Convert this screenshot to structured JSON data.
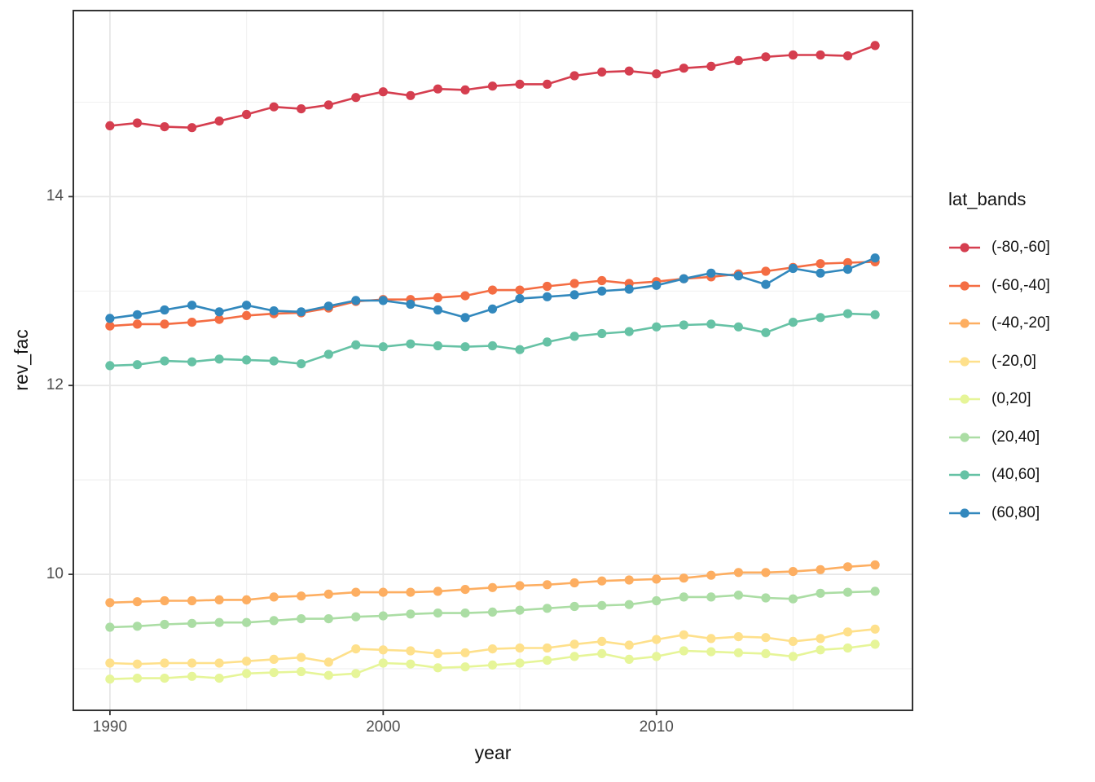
{
  "figure": {
    "background": "#ffffff",
    "panel_border_color": "#333333",
    "grid_major_color": "#e7e7e7",
    "grid_minor_color": "#f1f1f1",
    "tick_mark_color": "#333333",
    "axis_text_color": "#4d4d4d",
    "axis_title_color": "#141414"
  },
  "chart_data": {
    "type": "line",
    "title": "",
    "xlabel": "year",
    "ylabel": "rev_fac",
    "legend_title": "lat_bands",
    "legend_position": "right",
    "grid": true,
    "marker": "circle",
    "x": [
      1990,
      1991,
      1992,
      1993,
      1994,
      1995,
      1996,
      1997,
      1998,
      1999,
      2000,
      2001,
      2002,
      2003,
      2004,
      2005,
      2006,
      2007,
      2008,
      2009,
      2010,
      2011,
      2012,
      2013,
      2014,
      2015,
      2016,
      2017,
      2018
    ],
    "x_ticks": [
      1990,
      2000,
      2010
    ],
    "x_tick_labels": [
      "1990",
      "2000",
      "2010"
    ],
    "x_minor_ticks": [
      1995,
      2005,
      2015
    ],
    "y_ticks": [
      14,
      12,
      10
    ],
    "y_tick_labels": [
      "14",
      "12",
      "10"
    ],
    "y_minor_ticks": [
      9,
      11,
      13,
      15
    ],
    "xlim": [
      1988.66,
      2019.37
    ],
    "ylim": [
      8.56,
      15.97
    ],
    "series": [
      {
        "name": "(-80,-60]",
        "color": "#d53e4f",
        "values": [
          14.75,
          14.78,
          14.74,
          14.73,
          14.8,
          14.87,
          14.95,
          14.93,
          14.97,
          15.05,
          15.11,
          15.07,
          15.14,
          15.13,
          15.17,
          15.19,
          15.19,
          15.28,
          15.32,
          15.33,
          15.3,
          15.36,
          15.38,
          15.44,
          15.48,
          15.5,
          15.5,
          15.49,
          15.6
        ]
      },
      {
        "name": "(-60,-40]",
        "color": "#f46d43",
        "values": [
          12.63,
          12.65,
          12.65,
          12.67,
          12.7,
          12.74,
          12.76,
          12.77,
          12.82,
          12.89,
          12.91,
          12.91,
          12.93,
          12.95,
          13.01,
          13.01,
          13.05,
          13.08,
          13.11,
          13.08,
          13.1,
          13.13,
          13.15,
          13.18,
          13.21,
          13.25,
          13.29,
          13.3,
          13.31
        ]
      },
      {
        "name": "(-40,-20]",
        "color": "#fdae61",
        "values": [
          9.7,
          9.71,
          9.72,
          9.72,
          9.73,
          9.73,
          9.76,
          9.77,
          9.79,
          9.81,
          9.81,
          9.81,
          9.82,
          9.84,
          9.86,
          9.88,
          9.89,
          9.91,
          9.93,
          9.94,
          9.95,
          9.96,
          9.99,
          10.02,
          10.02,
          10.03,
          10.05,
          10.08,
          10.1
        ]
      },
      {
        "name": "(-20,0]",
        "color": "#fee08b",
        "values": [
          9.06,
          9.05,
          9.06,
          9.06,
          9.06,
          9.08,
          9.1,
          9.12,
          9.07,
          9.21,
          9.2,
          9.19,
          9.16,
          9.17,
          9.21,
          9.22,
          9.22,
          9.26,
          9.29,
          9.25,
          9.31,
          9.36,
          9.32,
          9.34,
          9.33,
          9.29,
          9.32,
          9.39,
          9.42
        ]
      },
      {
        "name": "(0,20]",
        "color": "#e6f598",
        "values": [
          8.89,
          8.9,
          8.9,
          8.92,
          8.9,
          8.95,
          8.96,
          8.97,
          8.93,
          8.95,
          9.06,
          9.05,
          9.01,
          9.02,
          9.04,
          9.06,
          9.09,
          9.13,
          9.16,
          9.1,
          9.13,
          9.19,
          9.18,
          9.17,
          9.16,
          9.13,
          9.2,
          9.22,
          9.26
        ]
      },
      {
        "name": "(20,40]",
        "color": "#abdda4",
        "values": [
          9.44,
          9.45,
          9.47,
          9.48,
          9.49,
          9.49,
          9.51,
          9.53,
          9.53,
          9.55,
          9.56,
          9.58,
          9.59,
          9.59,
          9.6,
          9.62,
          9.64,
          9.66,
          9.67,
          9.68,
          9.72,
          9.76,
          9.76,
          9.78,
          9.75,
          9.74,
          9.8,
          9.81,
          9.82
        ]
      },
      {
        "name": "(40,60]",
        "color": "#66c2a5",
        "values": [
          12.21,
          12.22,
          12.26,
          12.25,
          12.28,
          12.27,
          12.26,
          12.23,
          12.33,
          12.43,
          12.41,
          12.44,
          12.42,
          12.41,
          12.42,
          12.38,
          12.46,
          12.52,
          12.55,
          12.57,
          12.62,
          12.64,
          12.65,
          12.62,
          12.56,
          12.67,
          12.72,
          12.76,
          12.75
        ]
      },
      {
        "name": "(60,80]",
        "color": "#3288bd",
        "values": [
          12.71,
          12.75,
          12.8,
          12.85,
          12.78,
          12.85,
          12.79,
          12.78,
          12.84,
          12.9,
          12.9,
          12.86,
          12.8,
          12.72,
          12.81,
          12.92,
          12.94,
          12.96,
          13.0,
          13.02,
          13.06,
          13.13,
          13.19,
          13.16,
          13.07,
          13.24,
          13.19,
          13.23,
          13.35
        ]
      }
    ]
  }
}
